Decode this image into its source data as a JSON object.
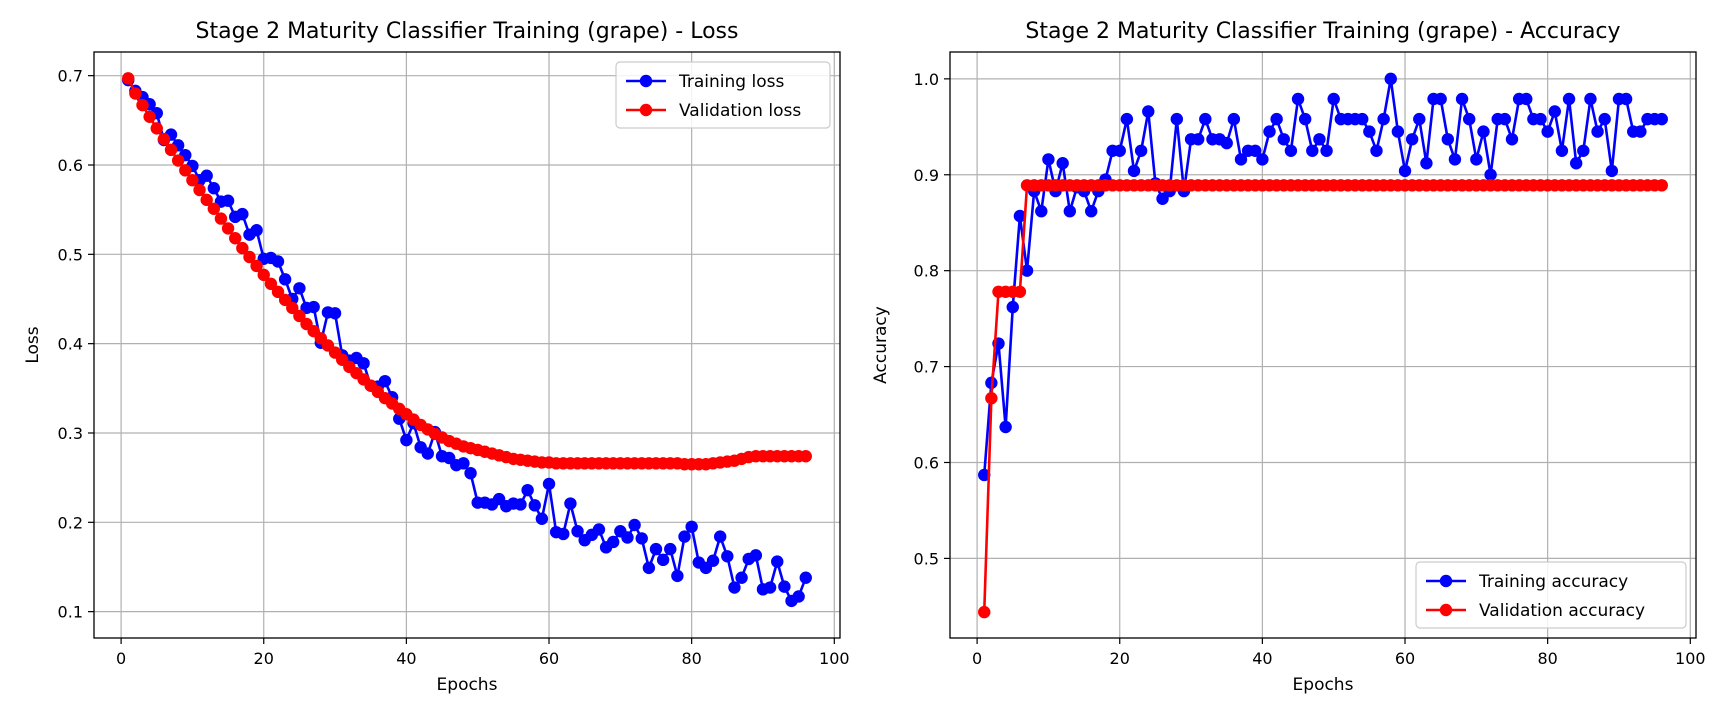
{
  "colors": {
    "training": "#0000ff",
    "validation": "#ff0000",
    "grid": "#b0b0b0",
    "axis": "#000000"
  },
  "chart_data": [
    {
      "type": "line",
      "title": "Stage 2 Maturity Classifier Training (grape) - Loss",
      "xlabel": "Epochs",
      "ylabel": "Loss",
      "xlim": [
        -3.8,
        100.8
      ],
      "ylim": [
        0.0705,
        0.7265
      ],
      "xticks": [
        0,
        20,
        40,
        60,
        80,
        100
      ],
      "yticks": [
        0.1,
        0.2,
        0.3,
        0.4,
        0.5,
        0.6,
        0.7
      ],
      "ytick_labels": [
        "0.1",
        "0.2",
        "0.3",
        "0.4",
        "0.5",
        "0.6",
        "0.7"
      ],
      "grid": true,
      "legend_position": "upper right",
      "x": [
        1,
        2,
        3,
        4,
        5,
        6,
        7,
        8,
        9,
        10,
        11,
        12,
        13,
        14,
        15,
        16,
        17,
        18,
        19,
        20,
        21,
        22,
        23,
        24,
        25,
        26,
        27,
        28,
        29,
        30,
        31,
        32,
        33,
        34,
        35,
        36,
        37,
        38,
        39,
        40,
        41,
        42,
        43,
        44,
        45,
        46,
        47,
        48,
        49,
        50,
        51,
        52,
        53,
        54,
        55,
        56,
        57,
        58,
        59,
        60,
        61,
        62,
        63,
        64,
        65,
        66,
        67,
        68,
        69,
        70,
        71,
        72,
        73,
        74,
        75,
        76,
        77,
        78,
        79,
        80,
        81,
        82,
        83,
        84,
        85,
        86,
        87,
        88,
        89,
        90,
        91,
        92,
        93,
        94,
        95,
        96
      ],
      "series": [
        {
          "name": "Training loss",
          "color": "#0000ff",
          "values": [
            0.695,
            0.683,
            0.676,
            0.668,
            0.658,
            0.628,
            0.634,
            0.622,
            0.611,
            0.599,
            0.583,
            0.588,
            0.574,
            0.559,
            0.56,
            0.542,
            0.545,
            0.522,
            0.527,
            0.495,
            0.496,
            0.492,
            0.472,
            0.45,
            0.462,
            0.44,
            0.441,
            0.401,
            0.435,
            0.434,
            0.387,
            0.381,
            0.384,
            0.378,
            0.353,
            0.352,
            0.358,
            0.34,
            0.316,
            0.292,
            0.311,
            0.284,
            0.277,
            0.301,
            0.274,
            0.272,
            0.264,
            0.266,
            0.255,
            0.222,
            0.222,
            0.22,
            0.226,
            0.218,
            0.221,
            0.22,
            0.236,
            0.219,
            0.204,
            0.243,
            0.189,
            0.187,
            0.221,
            0.19,
            0.18,
            0.186,
            0.192,
            0.172,
            0.178,
            0.19,
            0.183,
            0.197,
            0.182,
            0.149,
            0.17,
            0.158,
            0.17,
            0.14,
            0.184,
            0.195,
            0.155,
            0.149,
            0.157,
            0.184,
            0.162,
            0.127,
            0.138,
            0.159,
            0.163,
            0.125,
            0.127,
            0.156,
            0.128,
            0.112,
            0.117,
            0.138
          ]
        },
        {
          "name": "Validation loss",
          "color": "#ff0000",
          "values": [
            0.697,
            0.68,
            0.667,
            0.654,
            0.641,
            0.629,
            0.617,
            0.605,
            0.594,
            0.583,
            0.572,
            0.561,
            0.551,
            0.54,
            0.529,
            0.518,
            0.507,
            0.497,
            0.487,
            0.477,
            0.467,
            0.458,
            0.449,
            0.44,
            0.431,
            0.422,
            0.414,
            0.406,
            0.398,
            0.39,
            0.382,
            0.374,
            0.367,
            0.36,
            0.353,
            0.346,
            0.339,
            0.333,
            0.327,
            0.321,
            0.315,
            0.309,
            0.304,
            0.299,
            0.295,
            0.291,
            0.288,
            0.285,
            0.283,
            0.281,
            0.279,
            0.277,
            0.275,
            0.273,
            0.271,
            0.27,
            0.269,
            0.268,
            0.267,
            0.267,
            0.266,
            0.266,
            0.266,
            0.266,
            0.266,
            0.266,
            0.266,
            0.266,
            0.266,
            0.266,
            0.266,
            0.266,
            0.266,
            0.266,
            0.266,
            0.266,
            0.266,
            0.266,
            0.265,
            0.265,
            0.265,
            0.265,
            0.266,
            0.267,
            0.268,
            0.269,
            0.271,
            0.273,
            0.274,
            0.274,
            0.274,
            0.274,
            0.274,
            0.274,
            0.274,
            0.274
          ]
        }
      ]
    },
    {
      "type": "line",
      "title": "Stage 2 Maturity Classifier Training (grape) - Accuracy",
      "xlabel": "Epochs",
      "ylabel": "Accuracy",
      "xlim": [
        -3.8,
        100.8
      ],
      "ylim": [
        0.417,
        1.028
      ],
      "xticks": [
        0,
        20,
        40,
        60,
        80,
        100
      ],
      "yticks": [
        0.5,
        0.6,
        0.7,
        0.8,
        0.9,
        1.0
      ],
      "ytick_labels": [
        "0.5",
        "0.6",
        "0.7",
        "0.8",
        "0.9",
        "1.0"
      ],
      "grid": true,
      "legend_position": "lower right",
      "x": [
        1,
        2,
        3,
        4,
        5,
        6,
        7,
        8,
        9,
        10,
        11,
        12,
        13,
        14,
        15,
        16,
        17,
        18,
        19,
        20,
        21,
        22,
        23,
        24,
        25,
        26,
        27,
        28,
        29,
        30,
        31,
        32,
        33,
        34,
        35,
        36,
        37,
        38,
        39,
        40,
        41,
        42,
        43,
        44,
        45,
        46,
        47,
        48,
        49,
        50,
        51,
        52,
        53,
        54,
        55,
        56,
        57,
        58,
        59,
        60,
        61,
        62,
        63,
        64,
        65,
        66,
        67,
        68,
        69,
        70,
        71,
        72,
        73,
        74,
        75,
        76,
        77,
        78,
        79,
        80,
        81,
        82,
        83,
        84,
        85,
        86,
        87,
        88,
        89,
        90,
        91,
        92,
        93,
        94,
        95,
        96
      ],
      "series": [
        {
          "name": "Training accuracy",
          "color": "#0000ff",
          "values": [
            0.587,
            0.683,
            0.724,
            0.637,
            0.762,
            0.857,
            0.8,
            0.883,
            0.862,
            0.916,
            0.883,
            0.912,
            0.862,
            0.887,
            0.883,
            0.862,
            0.883,
            0.895,
            0.925,
            0.925,
            0.958,
            0.904,
            0.925,
            0.966,
            0.891,
            0.875,
            0.883,
            0.958,
            0.883,
            0.937,
            0.937,
            0.958,
            0.937,
            0.937,
            0.933,
            0.958,
            0.916,
            0.925,
            0.925,
            0.916,
            0.945,
            0.958,
            0.937,
            0.925,
            0.979,
            0.958,
            0.925,
            0.937,
            0.925,
            0.979,
            0.958,
            0.958,
            0.958,
            0.958,
            0.945,
            0.925,
            0.958,
            1.0,
            0.945,
            0.904,
            0.937,
            0.958,
            0.912,
            0.979,
            0.979,
            0.937,
            0.916,
            0.979,
            0.958,
            0.916,
            0.945,
            0.9,
            0.958,
            0.958,
            0.937,
            0.979,
            0.979,
            0.958,
            0.958,
            0.945,
            0.966,
            0.925,
            0.979,
            0.912,
            0.925,
            0.979,
            0.945,
            0.958,
            0.904,
            0.979,
            0.979,
            0.945,
            0.945,
            0.958,
            0.958,
            0.958
          ]
        },
        {
          "name": "Validation accuracy",
          "color": "#ff0000",
          "values": [
            0.444,
            0.667,
            0.778,
            0.778,
            0.778,
            0.778,
            0.889,
            0.889,
            0.889,
            0.889,
            0.889,
            0.889,
            0.889,
            0.889,
            0.889,
            0.889,
            0.889,
            0.889,
            0.889,
            0.889,
            0.889,
            0.889,
            0.889,
            0.889,
            0.889,
            0.889,
            0.889,
            0.889,
            0.889,
            0.889,
            0.889,
            0.889,
            0.889,
            0.889,
            0.889,
            0.889,
            0.889,
            0.889,
            0.889,
            0.889,
            0.889,
            0.889,
            0.889,
            0.889,
            0.889,
            0.889,
            0.889,
            0.889,
            0.889,
            0.889,
            0.889,
            0.889,
            0.889,
            0.889,
            0.889,
            0.889,
            0.889,
            0.889,
            0.889,
            0.889,
            0.889,
            0.889,
            0.889,
            0.889,
            0.889,
            0.889,
            0.889,
            0.889,
            0.889,
            0.889,
            0.889,
            0.889,
            0.889,
            0.889,
            0.889,
            0.889,
            0.889,
            0.889,
            0.889,
            0.889,
            0.889,
            0.889,
            0.889,
            0.889,
            0.889,
            0.889,
            0.889,
            0.889,
            0.889,
            0.889,
            0.889,
            0.889,
            0.889,
            0.889,
            0.889,
            0.889
          ]
        }
      ]
    }
  ]
}
